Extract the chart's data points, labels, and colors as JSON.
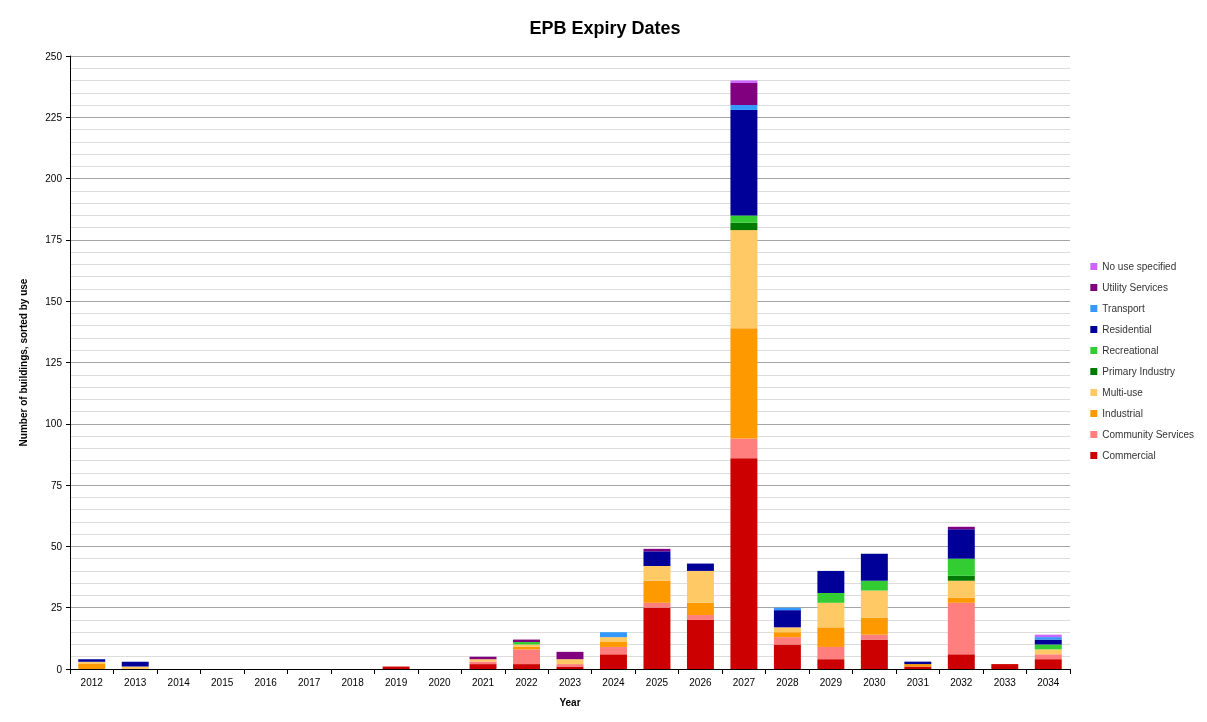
{
  "chart_data": {
    "type": "bar",
    "title": "EPB Expiry Dates",
    "xlabel": "Year",
    "ylabel": "Number of buildings, sorted by use",
    "categories": [
      "2012",
      "2013",
      "2014",
      "2015",
      "2016",
      "2017",
      "2018",
      "2019",
      "2020",
      "2021",
      "2022",
      "2023",
      "2024",
      "2025",
      "2026",
      "2027",
      "2028",
      "2029",
      "2030",
      "2031",
      "2032",
      "2033",
      "2034"
    ],
    "stacked": true,
    "ylim": [
      0,
      250
    ],
    "yticks": [
      0,
      25,
      50,
      75,
      100,
      125,
      150,
      175,
      200,
      225,
      250
    ],
    "grid": true,
    "legend": "right",
    "series": [
      {
        "name": "Commercial",
        "color": "#cc0000",
        "values": [
          0,
          0,
          0,
          0,
          0,
          0,
          0,
          1,
          0,
          2,
          2,
          1,
          6,
          25,
          20,
          86,
          10,
          4,
          12,
          1,
          6,
          2,
          4
        ]
      },
      {
        "name": "Community Services",
        "color": "#ff7f7f",
        "values": [
          0,
          0,
          0,
          0,
          0,
          0,
          0,
          0,
          0,
          1,
          6,
          1,
          3,
          2,
          2,
          8,
          3,
          5,
          2,
          0,
          21,
          0,
          2
        ]
      },
      {
        "name": "Industrial",
        "color": "#ff9900",
        "values": [
          2,
          0,
          0,
          0,
          0,
          0,
          0,
          0,
          0,
          0,
          1,
          0,
          2,
          9,
          5,
          45,
          2,
          8,
          7,
          1,
          2,
          0,
          0
        ]
      },
      {
        "name": "Multi-use",
        "color": "#ffc966",
        "values": [
          1,
          1,
          0,
          0,
          0,
          0,
          0,
          0,
          0,
          1,
          1,
          2,
          2,
          6,
          13,
          40,
          2,
          10,
          11,
          0,
          7,
          0,
          2
        ]
      },
      {
        "name": "Primary Industry",
        "color": "#007a00",
        "values": [
          0,
          0,
          0,
          0,
          0,
          0,
          0,
          0,
          0,
          0,
          0,
          0,
          0,
          0,
          0,
          3,
          0,
          0,
          0,
          0,
          2,
          0,
          0
        ]
      },
      {
        "name": "Recreational",
        "color": "#33cc33",
        "values": [
          0,
          0,
          0,
          0,
          0,
          0,
          0,
          0,
          0,
          0,
          1,
          0,
          0,
          0,
          0,
          3,
          0,
          4,
          4,
          0,
          7,
          0,
          2
        ]
      },
      {
        "name": "Residential",
        "color": "#000099",
        "values": [
          1,
          2,
          0,
          0,
          0,
          0,
          0,
          0,
          0,
          0,
          0,
          0,
          0,
          6,
          3,
          43,
          7,
          9,
          11,
          1,
          12,
          0,
          2
        ]
      },
      {
        "name": "Transport",
        "color": "#3399ff",
        "values": [
          0,
          0,
          0,
          0,
          0,
          0,
          0,
          0,
          0,
          0,
          0,
          0,
          2,
          0,
          0,
          2,
          1,
          0,
          0,
          0,
          0,
          0,
          1
        ]
      },
      {
        "name": "Utility Services",
        "color": "#800080",
        "values": [
          0,
          0,
          0,
          0,
          0,
          0,
          0,
          0,
          0,
          1,
          1,
          3,
          0,
          1,
          0,
          9,
          0,
          0,
          0,
          0,
          1,
          0,
          0
        ]
      },
      {
        "name": "No use specified",
        "color": "#cc66ff",
        "values": [
          0,
          0,
          0,
          0,
          0,
          0,
          0,
          0,
          0,
          0,
          0,
          0,
          0,
          0,
          0,
          1,
          0,
          0,
          0,
          0,
          0,
          0,
          1
        ]
      }
    ]
  }
}
